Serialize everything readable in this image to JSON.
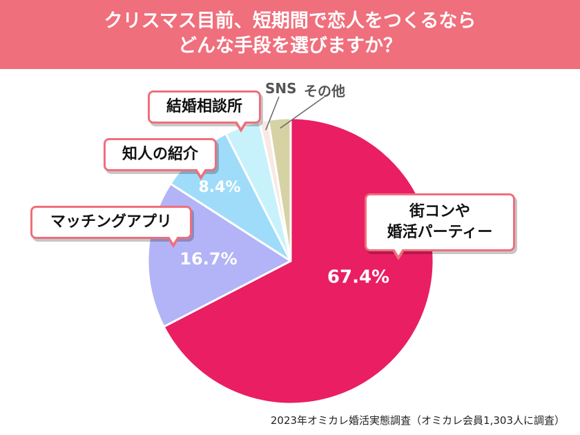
{
  "header": {
    "title_line1": "クリスマス目前、短期間で恋人をつくるなら",
    "title_line2": "どんな手段を選びますか？"
  },
  "chart_data": {
    "type": "pie",
    "title": "クリスマス目前、短期間で恋人をつくるならどんな手段を選びますか？",
    "slices": [
      {
        "label": "街コンや婚活パーティー",
        "value": 67.4,
        "value_label": "67.4%",
        "color": "#e91e63"
      },
      {
        "label": "マッチングアプリ",
        "value": 16.7,
        "value_label": "16.7%",
        "color": "#b3b3f7"
      },
      {
        "label": "知人の紹介",
        "value": 8.4,
        "value_label": "8.4%",
        "color": "#9fdcfa"
      },
      {
        "label": "結婚相談所",
        "value": 4.0,
        "value_label": "",
        "color": "#c8f2fb"
      },
      {
        "label": "SNS",
        "value": 1.0,
        "value_label": "",
        "color": "#f8e8e4"
      },
      {
        "label": "その他",
        "value": 2.5,
        "value_label": "",
        "color": "#d6d2a4"
      }
    ]
  },
  "labels": {
    "slice0_line1": "街コンや",
    "slice0_line2": "婚活パーティー",
    "slice1": "マッチングアプリ",
    "slice2": "知人の紹介",
    "slice3": "結婚相談所",
    "slice4": "SNS",
    "slice5": "その他"
  },
  "source": "2023年オミカレ婚活実態調査（オミカレ会員1,303人に調査）"
}
